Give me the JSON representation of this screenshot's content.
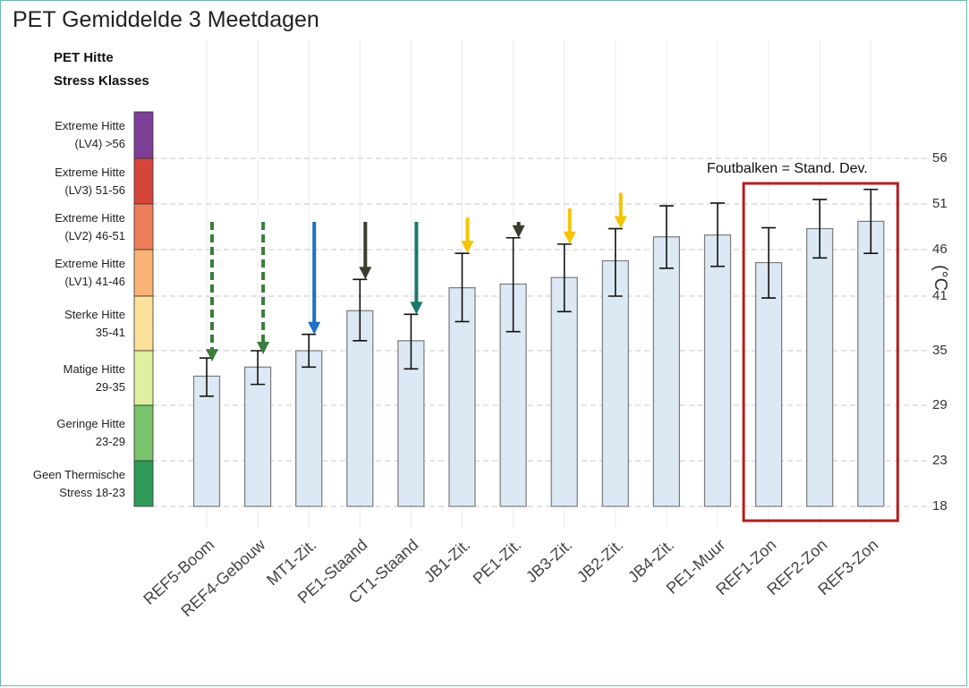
{
  "title": "PET Gemiddelde 3 Meetdagen",
  "legend": {
    "title_line1": "PET Hitte",
    "title_line2": "Stress Klasses",
    "classes": [
      {
        "line1": "Extreme Hitte",
        "line2": "(LV4) >56",
        "color": "#7d3f98"
      },
      {
        "line1": "Extreme Hitte",
        "line2": "(LV3) 51-56",
        "color": "#d6453b"
      },
      {
        "line1": "Extreme Hitte",
        "line2": "(LV2) 46-51",
        "color": "#ee7d59"
      },
      {
        "line1": "Extreme Hitte",
        "line2": "(LV1) 41-46",
        "color": "#f8b375"
      },
      {
        "line1": "Sterke Hitte",
        "line2": "35-41",
        "color": "#fde09a"
      },
      {
        "line1": "Matige Hitte",
        "line2": "29-35",
        "color": "#def0a0"
      },
      {
        "line1": "Geringe Hitte",
        "line2": "23-29",
        "color": "#78c36a"
      },
      {
        "line1": "Geen Thermische",
        "line2": "Stress 18-23",
        "color": "#2e9a58"
      }
    ]
  },
  "annotation": "Foutbalken = Stand. Dev.",
  "y_axis_label_partial": "(°C",
  "chart_data": {
    "type": "bar",
    "title": "PET Gemiddelde 3 Meetdagen",
    "categories": [
      "REF5-Boom",
      "REF4-Gebouw",
      "MT1-Zit.",
      "PE1-Staand",
      "CT1-Staand",
      "JB1-Zit.",
      "PE1-Zit.",
      "JB3-Zit.",
      "JB2-Zit.",
      "JB4-Zit.",
      "PE1-Muur",
      "REF1-Zon",
      "REF2-Zon",
      "REF3-Zon"
    ],
    "values": [
      32.2,
      33.2,
      35.0,
      39.4,
      36.1,
      41.9,
      42.3,
      43.0,
      44.8,
      47.4,
      47.6,
      44.6,
      48.3,
      49.1
    ],
    "error_low": [
      30.0,
      31.3,
      33.2,
      36.1,
      33.0,
      38.2,
      37.1,
      39.3,
      41.0,
      44.0,
      44.2,
      40.8,
      45.1,
      45.6
    ],
    "error_high": [
      34.2,
      35.0,
      36.8,
      42.8,
      39.0,
      45.6,
      47.3,
      46.6,
      48.3,
      50.8,
      51.1,
      48.4,
      51.5,
      52.6
    ],
    "ylim": [
      18,
      56
    ],
    "yticks": [
      18,
      23,
      29,
      35,
      41,
      46,
      51,
      56
    ],
    "bar_color": "#dce9f5",
    "highlight_box_categories": [
      "REF1-Zon",
      "REF2-Zon",
      "REF3-Zon"
    ],
    "highlight_box_color": "#b21f1f",
    "arrows": [
      {
        "category": "REF5-Boom",
        "color": "#3a7d3a",
        "style": "dashed"
      },
      {
        "category": "REF4-Gebouw",
        "color": "#3a7d3a",
        "style": "dashed"
      },
      {
        "category": "MT1-Zit.",
        "color": "#1f6fc4",
        "style": "solid"
      },
      {
        "category": "PE1-Staand",
        "color": "#3b3b2e",
        "style": "solid"
      },
      {
        "category": "CT1-Staand",
        "color": "#17786b",
        "style": "solid"
      },
      {
        "category": "JB1-Zit.",
        "color": "#f5c400",
        "style": "solid"
      },
      {
        "category": "PE1-Zit.",
        "color": "#3b3b2e",
        "style": "solid"
      },
      {
        "category": "JB3-Zit.",
        "color": "#f5c400",
        "style": "solid"
      },
      {
        "category": "JB2-Zit.",
        "color": "#f5c400",
        "style": "solid"
      }
    ]
  }
}
